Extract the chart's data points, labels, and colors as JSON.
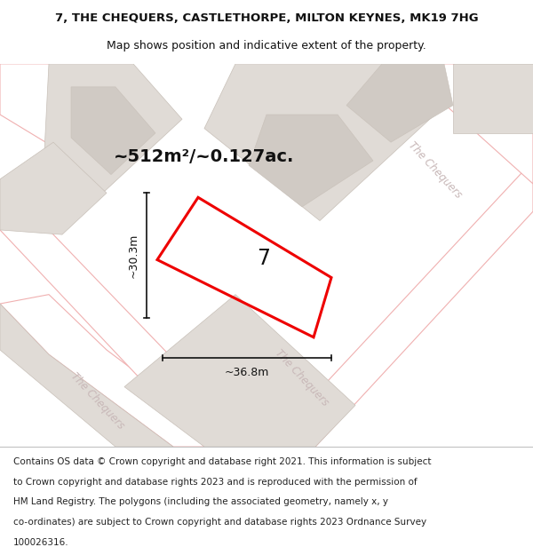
{
  "title_line1": "7, THE CHEQUERS, CASTLETHORPE, MILTON KEYNES, MK19 7HG",
  "title_line2": "Map shows position and indicative extent of the property.",
  "area_text": "~512m²/~0.127ac.",
  "label_7": "7",
  "dim_width": "~36.8m",
  "dim_height": "~30.3m",
  "foot_lines": [
    "Contains OS data © Crown copyright and database right 2021. This information is subject",
    "to Crown copyright and database rights 2023 and is reproduced with the permission of",
    "HM Land Registry. The polygons (including the associated geometry, namely x, y",
    "co-ordinates) are subject to Crown copyright and database rights 2023 Ordnance Survey",
    "100026316."
  ],
  "map_bg": "#f5f0ec",
  "road_fill": "#ffffff",
  "building_fill": "#e0dbd6",
  "road_line_color": "#f0b0b0",
  "highlight_color": "#ee0000",
  "highlight_lw": 2.2,
  "dim_color": "#111111",
  "road_label_color": "#c8b8b8",
  "footnote_color": "#222222",
  "title_color": "#111111"
}
